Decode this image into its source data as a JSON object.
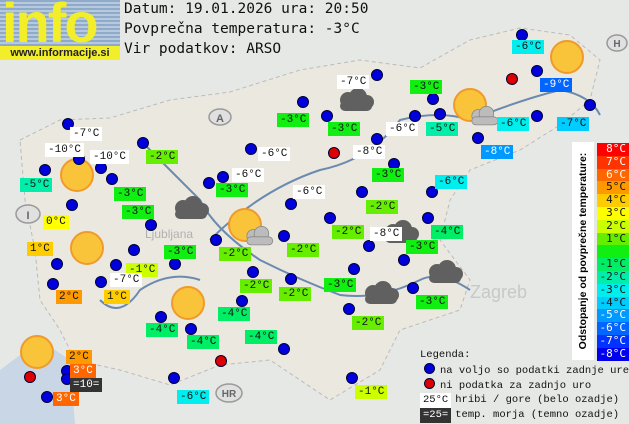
{
  "logo": {
    "word": "info",
    "url": "www.informacije.si"
  },
  "header": {
    "date_line": "Datum: 19.01.2026 ura: 20:50",
    "avg_line": "Povprečna temperatura: -3°C",
    "source_line": "Vir podatkov: ARSO"
  },
  "average_temperature": -3,
  "map_labels": {
    "austria": "A",
    "italy": "I",
    "hungary": "H",
    "croatia": "HR",
    "zagreb": "Zagreb",
    "ljubljana": "Ljubljana"
  },
  "stations": [
    {
      "text": "-6°C"
    },
    {
      "text": "-9°C"
    },
    {
      "text": "-7°C",
      "type": "mountain"
    },
    {
      "text": "-3°C"
    },
    {
      "text": "-3°C"
    },
    {
      "text": "-3°C"
    },
    {
      "text": "-6°C",
      "type": "mountain"
    },
    {
      "text": "-5°C"
    },
    {
      "text": "-6°C"
    },
    {
      "text": "-7°C"
    },
    {
      "text": "-8°C"
    },
    {
      "text": "-8°C",
      "type": "mountain"
    },
    {
      "text": "-3°C"
    },
    {
      "text": "-6°C"
    },
    {
      "text": "-7°C",
      "type": "mountain"
    },
    {
      "text": "-10°C",
      "type": "mountain"
    },
    {
      "text": "-10°C",
      "type": "mountain"
    },
    {
      "text": "-2°C"
    },
    {
      "text": "-6°C",
      "type": "mountain"
    },
    {
      "text": "-5°C"
    },
    {
      "text": "-6°C",
      "type": "mountain"
    },
    {
      "text": "-3°C"
    },
    {
      "text": "-3°C"
    },
    {
      "text": "-6°C",
      "type": "mountain"
    },
    {
      "text": "-2°C"
    },
    {
      "text": "-3°C"
    },
    {
      "text": "0°C"
    },
    {
      "text": "-2°C"
    },
    {
      "text": "-8°C",
      "type": "mountain"
    },
    {
      "text": "-4°C"
    },
    {
      "text": "-3°C"
    },
    {
      "text": "1°C"
    },
    {
      "text": "-3°C"
    },
    {
      "text": "-2°C"
    },
    {
      "text": "-2°C"
    },
    {
      "text": "-1°C"
    },
    {
      "text": "-7°C",
      "type": "mountain"
    },
    {
      "text": "-3°C"
    },
    {
      "text": "-3°C"
    },
    {
      "text": "2°C"
    },
    {
      "text": "1°C"
    },
    {
      "text": "-2°C"
    },
    {
      "text": "-2°C"
    },
    {
      "text": "-4°C"
    },
    {
      "text": "-4°C"
    },
    {
      "text": "-4°C"
    },
    {
      "text": "-4°C"
    },
    {
      "text": "-2°C"
    },
    {
      "text": "2°C"
    },
    {
      "text": "3°C"
    },
    {
      "text": "=10=",
      "type": "sea"
    },
    {
      "text": "3°C"
    },
    {
      "text": "-6°C"
    },
    {
      "text": "-1°C"
    }
  ],
  "dots": {
    "available_count": 52,
    "missing_count": 4,
    "available_color": "#0000dd",
    "missing_color": "#dd0000"
  },
  "weather_icons": {
    "sun": 5,
    "sun_cloud": 2,
    "cloud": 5
  },
  "scale": {
    "title": "Odstopanje od povprečne temperature:",
    "steps": [
      {
        "label": "8°C",
        "color": "#ff0000",
        "fg": "#ffffff"
      },
      {
        "label": "7°C",
        "color": "#ff3300",
        "fg": "#ffffff"
      },
      {
        "label": "6°C",
        "color": "#ff6600",
        "fg": "#ffffff"
      },
      {
        "label": "5°C",
        "color": "#ff9900",
        "fg": "#111111"
      },
      {
        "label": "4°C",
        "color": "#ffcc00",
        "fg": "#111111"
      },
      {
        "label": "3°C",
        "color": "#ffff00",
        "fg": "#111111"
      },
      {
        "label": "2°C",
        "color": "#ccff00",
        "fg": "#111111"
      },
      {
        "label": "1°C",
        "color": "#66ee00",
        "fg": "#111111"
      },
      {
        "label": "",
        "color": "#11ee11",
        "fg": "#111111"
      },
      {
        "label": "-1°C",
        "color": "#00ee66",
        "fg": "#111111"
      },
      {
        "label": "-2°C",
        "color": "#00eeaa",
        "fg": "#111111"
      },
      {
        "label": "-3°C",
        "color": "#00eeee",
        "fg": "#111111"
      },
      {
        "label": "-4°C",
        "color": "#00ccff",
        "fg": "#111111"
      },
      {
        "label": "-5°C",
        "color": "#0099ff",
        "fg": "#ffffff"
      },
      {
        "label": "-6°C",
        "color": "#0066ff",
        "fg": "#ffffff"
      },
      {
        "label": "-7°C",
        "color": "#0033ff",
        "fg": "#ffffff"
      },
      {
        "label": "-8°C",
        "color": "#0000ee",
        "fg": "#ffffff"
      }
    ]
  },
  "legend": {
    "title": "Legenda:",
    "available": "na voljo so podatki zadnje ure",
    "missing": "ni podatka za zadnjo uro",
    "mountain_sample": "25°C",
    "mountain_text": "hribi / gore (belo ozadje)",
    "sea_sample": "=25=",
    "sea_text": "temp. morja (temno ozadje)"
  }
}
